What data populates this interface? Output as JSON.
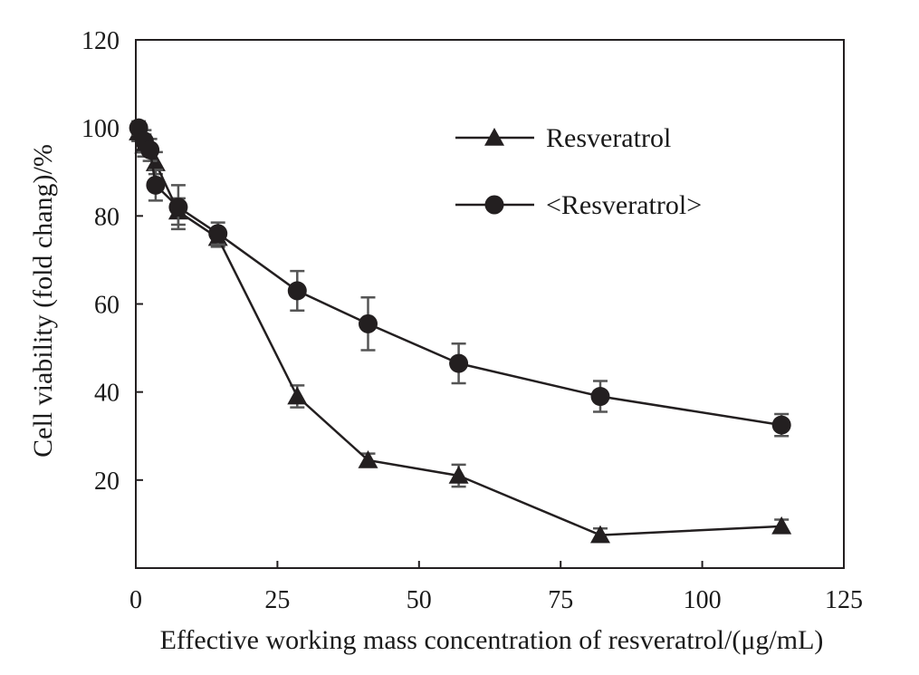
{
  "chart_data": {
    "type": "line",
    "xlabel": "Effective working mass concentration of resveratrol/(μg/mL)",
    "ylabel": "Cell viability (fold chang)/%",
    "xlim": [
      0,
      125
    ],
    "ylim": [
      0,
      120
    ],
    "xticks": [
      0,
      25,
      50,
      75,
      100,
      125
    ],
    "yticks": [
      20,
      40,
      60,
      80,
      100,
      120
    ],
    "xtick_labels": [
      "0",
      "25",
      "50",
      "75",
      "100",
      "125"
    ],
    "ytick_labels": [
      "20",
      "40",
      "60",
      "80",
      "100",
      "120"
    ],
    "grid": false,
    "legend_position": "upper-right",
    "series": [
      {
        "name": "Resveratrol",
        "marker": "triangle",
        "color": "#231f20",
        "x": [
          0.5,
          1.5,
          3.5,
          7.5,
          14.5,
          28.5,
          41,
          57,
          82,
          114
        ],
        "y": [
          99,
          96,
          92,
          81,
          75,
          39,
          24.5,
          21,
          7.5,
          9.5
        ],
        "err": [
          2,
          2.5,
          2.5,
          3,
          2,
          2.5,
          1.5,
          2.5,
          1.5,
          1.5
        ]
      },
      {
        "name": "<Resveratrol>",
        "marker": "circle",
        "color": "#231f20",
        "x": [
          0.5,
          1.5,
          2.5,
          3.5,
          7.5,
          14.5,
          28.5,
          41,
          57,
          82,
          114
        ],
        "y": [
          100,
          97,
          95,
          87,
          82,
          76,
          63,
          55.5,
          46.5,
          39,
          32.5
        ],
        "err": [
          1.5,
          2.5,
          2.5,
          3.5,
          5,
          2.5,
          4.5,
          6,
          4.5,
          3.5,
          2.5
        ]
      }
    ]
  }
}
